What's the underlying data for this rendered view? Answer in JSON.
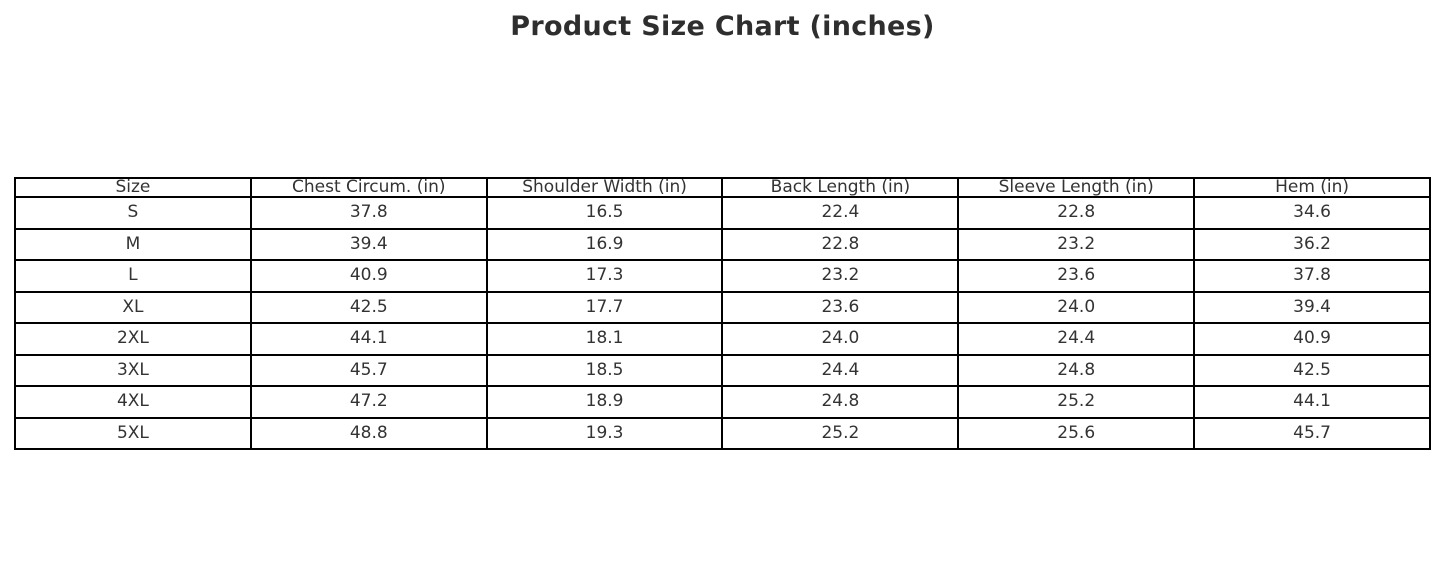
{
  "page": {
    "title": "Product Size Chart (inches)"
  },
  "colors": {
    "background": "#ffffff",
    "border": "#000000",
    "cell_text": "#333333",
    "title_text": "#2e2e2e"
  },
  "chart_data": {
    "type": "table",
    "title": "Product Size Chart (inches)",
    "columns": [
      "Size",
      "Chest Circum. (in)",
      "Shoulder Width (in)",
      "Back Length (in)",
      "Sleeve Length (in)",
      "Hem (in)"
    ],
    "rows": [
      [
        "S",
        "37.8",
        "16.5",
        "22.4",
        "22.8",
        "34.6"
      ],
      [
        "M",
        "39.4",
        "16.9",
        "22.8",
        "23.2",
        "36.2"
      ],
      [
        "L",
        "40.9",
        "17.3",
        "23.2",
        "23.6",
        "37.8"
      ],
      [
        "XL",
        "42.5",
        "17.7",
        "23.6",
        "24.0",
        "39.4"
      ],
      [
        "2XL",
        "44.1",
        "18.1",
        "24.0",
        "24.4",
        "40.9"
      ],
      [
        "3XL",
        "45.7",
        "18.5",
        "24.4",
        "24.8",
        "42.5"
      ],
      [
        "4XL",
        "47.2",
        "18.9",
        "24.8",
        "25.2",
        "44.1"
      ],
      [
        "5XL",
        "48.8",
        "19.3",
        "25.2",
        "25.6",
        "45.7"
      ]
    ],
    "layout": {
      "title_position": "top-center",
      "cell_alignment": "center",
      "grid": "all-borders"
    }
  }
}
